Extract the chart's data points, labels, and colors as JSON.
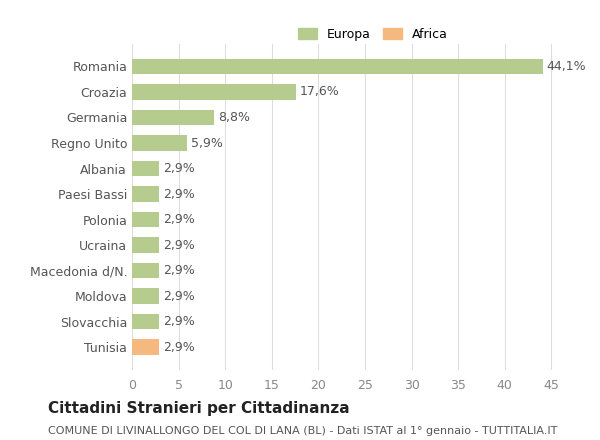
{
  "categories": [
    "Tunisia",
    "Slovacchia",
    "Moldova",
    "Macedonia d/N.",
    "Ucraina",
    "Polonia",
    "Paesi Bassi",
    "Albania",
    "Regno Unito",
    "Germania",
    "Croazia",
    "Romania"
  ],
  "values": [
    2.9,
    2.9,
    2.9,
    2.9,
    2.9,
    2.9,
    2.9,
    2.9,
    5.9,
    8.8,
    17.6,
    44.1
  ],
  "labels": [
    "2,9%",
    "2,9%",
    "2,9%",
    "2,9%",
    "2,9%",
    "2,9%",
    "2,9%",
    "2,9%",
    "5,9%",
    "8,8%",
    "17,6%",
    "44,1%"
  ],
  "bar_colors": [
    "#f5b97f",
    "#b5cc8e",
    "#b5cc8e",
    "#b5cc8e",
    "#b5cc8e",
    "#b5cc8e",
    "#b5cc8e",
    "#b5cc8e",
    "#b5cc8e",
    "#b5cc8e",
    "#b5cc8e",
    "#b5cc8e"
  ],
  "legend_labels": [
    "Europa",
    "Africa"
  ],
  "legend_colors": [
    "#b5cc8e",
    "#f5b97f"
  ],
  "xlim": [
    0,
    47
  ],
  "xticks": [
    0,
    5,
    10,
    15,
    20,
    25,
    30,
    35,
    40,
    45
  ],
  "title": "Cittadini Stranieri per Cittadinanza",
  "subtitle": "COMUNE DI LIVINALLONGO DEL COL DI LANA (BL) - Dati ISTAT al 1° gennaio - TUTTITALIA.IT",
  "background_color": "#ffffff",
  "grid_color": "#dddddd",
  "label_fontsize": 9,
  "tick_fontsize": 9,
  "title_fontsize": 11,
  "subtitle_fontsize": 8
}
